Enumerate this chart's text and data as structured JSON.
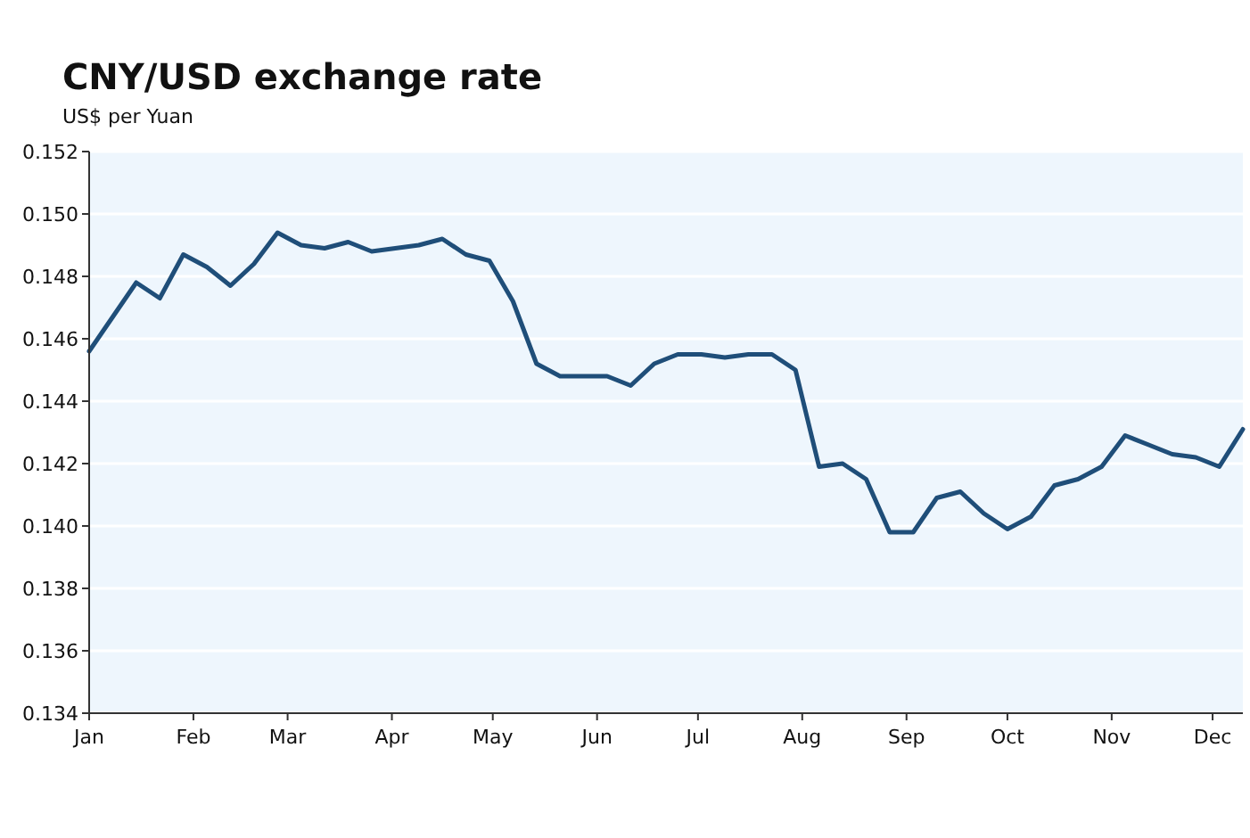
{
  "chart_data": {
    "type": "line",
    "title": "CNY/USD exchange rate",
    "subtitle": "US$ per Yuan",
    "x": [
      "--01-01",
      "--01-08",
      "--01-15",
      "--01-22",
      "--01-29",
      "--02-05",
      "--02-12",
      "--02-19",
      "--02-26",
      "--03-05",
      "--03-12",
      "--03-19",
      "--03-26",
      "--04-02",
      "--04-09",
      "--04-16",
      "--04-23",
      "--04-30",
      "--05-07",
      "--05-14",
      "--05-21",
      "--05-28",
      "--06-04",
      "--06-11",
      "--06-18",
      "--06-25",
      "--07-02",
      "--07-09",
      "--07-16",
      "--07-23",
      "--07-30",
      "--08-06",
      "--08-13",
      "--08-20",
      "--08-27",
      "--09-03",
      "--09-10",
      "--09-17",
      "--09-24",
      "--10-01",
      "--10-08",
      "--10-15",
      "--10-22",
      "--10-29",
      "--11-05",
      "--11-12",
      "--11-19",
      "--11-26",
      "--12-03",
      "--12-10"
    ],
    "series": [
      {
        "color": "#1f4e79",
        "values": [
          0.1456,
          0.1467,
          0.1478,
          0.1473,
          0.1487,
          0.1483,
          0.1477,
          0.1484,
          0.1494,
          0.149,
          0.1489,
          0.1491,
          0.1488,
          0.1489,
          0.149,
          0.1492,
          0.1487,
          0.1485,
          0.1472,
          0.1452,
          0.1448,
          0.1448,
          0.1448,
          0.1445,
          0.1452,
          0.1455,
          0.1455,
          0.1454,
          0.1455,
          0.1455,
          0.145,
          0.1419,
          0.142,
          0.1415,
          0.1398,
          0.1398,
          0.1409,
          0.1411,
          0.1404,
          0.1399,
          0.1403,
          0.1413,
          0.1415,
          0.1419,
          0.1429,
          0.1426,
          0.1423,
          0.1422,
          0.1419,
          0.1431
        ]
      }
    ],
    "xlim": [
      "--01-01",
      "--12-10"
    ],
    "xticks": [
      {
        "value": "--01-01",
        "label": "Jan"
      },
      {
        "value": "--02-01",
        "label": "Feb"
      },
      {
        "value": "--03-01",
        "label": "Mar"
      },
      {
        "value": "--04-01",
        "label": "Apr"
      },
      {
        "value": "--05-01",
        "label": "May"
      },
      {
        "value": "--06-01",
        "label": "Jun"
      },
      {
        "value": "--07-01",
        "label": "Jul"
      },
      {
        "value": "--08-01",
        "label": "Aug"
      },
      {
        "value": "--09-01",
        "label": "Sep"
      },
      {
        "value": "--10-01",
        "label": "Oct"
      },
      {
        "value": "--11-01",
        "label": "Nov"
      },
      {
        "value": "--12-01",
        "label": "Dec"
      }
    ],
    "ylim": [
      0.134,
      0.152
    ],
    "yticks": [
      {
        "value": 0.134,
        "label": "0.134"
      },
      {
        "value": 0.136,
        "label": "0.136"
      },
      {
        "value": 0.138,
        "label": "0.138"
      },
      {
        "value": 0.14,
        "label": "0.140"
      },
      {
        "value": 0.142,
        "label": "0.142"
      },
      {
        "value": 0.144,
        "label": "0.144"
      },
      {
        "value": 0.146,
        "label": "0.146"
      },
      {
        "value": 0.148,
        "label": "0.148"
      },
      {
        "value": 0.15,
        "label": "0.150"
      },
      {
        "value": 0.152,
        "label": "0.152"
      }
    ],
    "grid": "y",
    "marker": "none",
    "line_style": "solid"
  }
}
